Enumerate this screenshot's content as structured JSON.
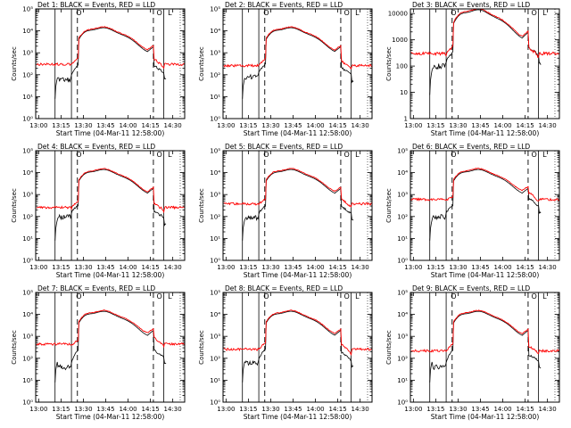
{
  "chart_data": {
    "type": "line",
    "x_axis": {
      "label": "Start Time (04-Mar-11 12:58:00)",
      "tick_labels": [
        "13:00",
        "13:15",
        "13:30",
        "13:45",
        "14:00",
        "14:15",
        "14:30"
      ],
      "tick_minutes": [
        2,
        17,
        32,
        47,
        62,
        77,
        92
      ],
      "range_minutes": [
        0,
        100
      ]
    },
    "y_axis": {
      "label": "Counts/sec",
      "scale": "log",
      "default_tick_labels": [
        "10⁰",
        "10¹",
        "10²",
        "10³",
        "10⁴",
        "10⁵"
      ],
      "default_range": [
        1,
        100000
      ]
    },
    "vertical_markers": {
      "solid_minutes": [
        13,
        24,
        86
      ],
      "dashed_minutes": [
        28,
        79
      ],
      "dotted_minutes": [
        97
      ],
      "symbols": [
        {
          "text": "O",
          "minute": 29
        },
        {
          "text": "O",
          "minute": 83
        },
        {
          "text": "L",
          "minute": 90
        }
      ]
    },
    "series_colors": {
      "events": "#000000",
      "lld": "#ff0000"
    },
    "panels": [
      {
        "title": "Det 1: BLACK = Events, RED = LLD",
        "red_base": 300,
        "pre": 200,
        "post": 150,
        "events_drop_minute": 100,
        "black_pre": 60,
        "black_post": 100
      },
      {
        "title": "Det 2: BLACK = Events, RED = LLD",
        "red_base": 260,
        "pre": 180,
        "post": 120,
        "events_drop_minute": 100,
        "black_pre": 80,
        "black_post": 80
      },
      {
        "title": "Det 3: BLACK = Events, RED = LLD",
        "red_base": 300,
        "pre": 200,
        "post": 150,
        "events_drop_minute": 100,
        "black_pre": 100,
        "black_post": 200,
        "tick_labels": [
          "1",
          "10",
          "100",
          "1000",
          "10000"
        ],
        "range": [
          1,
          15000
        ]
      },
      {
        "title": "Det 4: BLACK = Events, RED = LLD",
        "red_base": 260,
        "pre": 170,
        "post": 120,
        "events_drop_minute": 100,
        "black_pre": 100,
        "black_post": 70
      },
      {
        "title": "Det 5: BLACK = Events, RED = LLD",
        "red_base": 380,
        "pre": 260,
        "post": 180,
        "events_drop_minute": 100,
        "black_pre": 90,
        "black_post": 110
      },
      {
        "title": "Det 6: BLACK = Events, RED = LLD",
        "red_base": 600,
        "pre": 400,
        "post": 350,
        "events_drop_minute": 100,
        "black_pre": 100,
        "black_post": 250
      },
      {
        "title": "Det 7: BLACK = Events, RED = LLD",
        "red_base": 450,
        "pre": 280,
        "post": 250,
        "events_drop_minute": 100,
        "black_pre": 40,
        "black_post": 90
      },
      {
        "title": "Det 8: BLACK = Events, RED = LLD",
        "red_base": 260,
        "pre": 180,
        "post": 120,
        "events_drop_minute": 100,
        "black_pre": 60,
        "black_post": 70
      },
      {
        "title": "Det 9: BLACK = Events, RED = LLD",
        "red_base": 220,
        "pre": 140,
        "post": 110,
        "events_drop_minute": 94,
        "black_pre": 40,
        "black_post": 60
      }
    ]
  }
}
